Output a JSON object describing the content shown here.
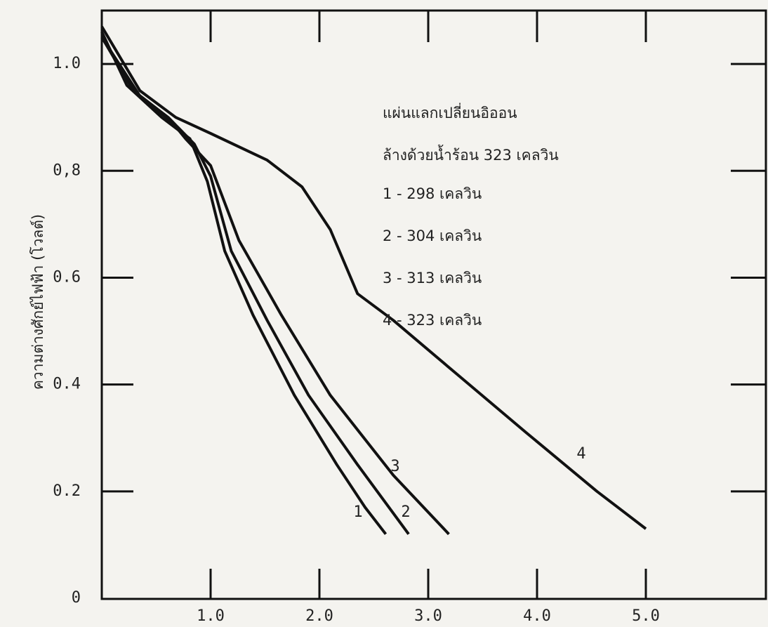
{
  "chart_data": {
    "type": "line",
    "ylabel": "ความต่างศักย์ไฟฟ้า  (โวลต์)",
    "annotations": [
      "แผ่นแลกเปลี่ยนอิออน",
      "ล้างด้วยน้ำร้อน 323 เคลวิน",
      "1 - 298 เคลวิน",
      "2 - 304 เคลวิน",
      "3 - 313 เคลวิน",
      "4 - 323 เคลวิน"
    ],
    "xlim": [
      0,
      6
    ],
    "xticks": [
      {
        "value": 1,
        "label": "1.0"
      },
      {
        "value": 2,
        "label": "2.0"
      },
      {
        "value": 3,
        "label": "3.0"
      },
      {
        "value": 4,
        "label": "4.0"
      },
      {
        "value": 5,
        "label": "5.0"
      }
    ],
    "ylim": [
      0,
      1.1
    ],
    "yticks": [
      0,
      0.2,
      0.4,
      0.6,
      {
        "value": 0.8,
        "label": "0,8"
      },
      {
        "value": 1,
        "label": "1.0"
      }
    ],
    "color": "#111111",
    "series": [
      {
        "name": "1",
        "x": [
          0,
          0.23,
          0.55,
          0.81,
          0.97,
          1.13,
          1.39,
          1.77,
          2.16,
          2.42,
          2.61
        ],
        "values": [
          1.06,
          0.96,
          0.9,
          0.86,
          0.78,
          0.65,
          0.53,
          0.38,
          0.25,
          0.17,
          0.12
        ]
      },
      {
        "name": "2",
        "x": [
          0,
          0.29,
          0.61,
          0.85,
          1.0,
          1.19,
          1.52,
          1.9,
          2.35,
          2.82
        ],
        "values": [
          1.05,
          0.95,
          0.9,
          0.85,
          0.79,
          0.65,
          0.52,
          0.38,
          0.25,
          0.12
        ]
      },
      {
        "name": "3",
        "x": [
          0,
          0.35,
          0.65,
          0.77,
          1.0,
          1.26,
          1.65,
          2.1,
          2.68,
          3.19
        ],
        "values": [
          1.05,
          0.94,
          0.89,
          0.86,
          0.81,
          0.67,
          0.53,
          0.38,
          0.23,
          0.12
        ]
      },
      {
        "name": "4",
        "x": [
          0,
          0.35,
          0.68,
          1.0,
          1.52,
          1.84,
          2.1,
          2.35,
          2.68,
          3.26,
          3.9,
          4.55,
          5.0
        ],
        "values": [
          1.07,
          0.95,
          0.9,
          0.87,
          0.82,
          0.77,
          0.69,
          0.57,
          0.52,
          0.42,
          0.31,
          0.2,
          0.13
        ]
      }
    ]
  }
}
